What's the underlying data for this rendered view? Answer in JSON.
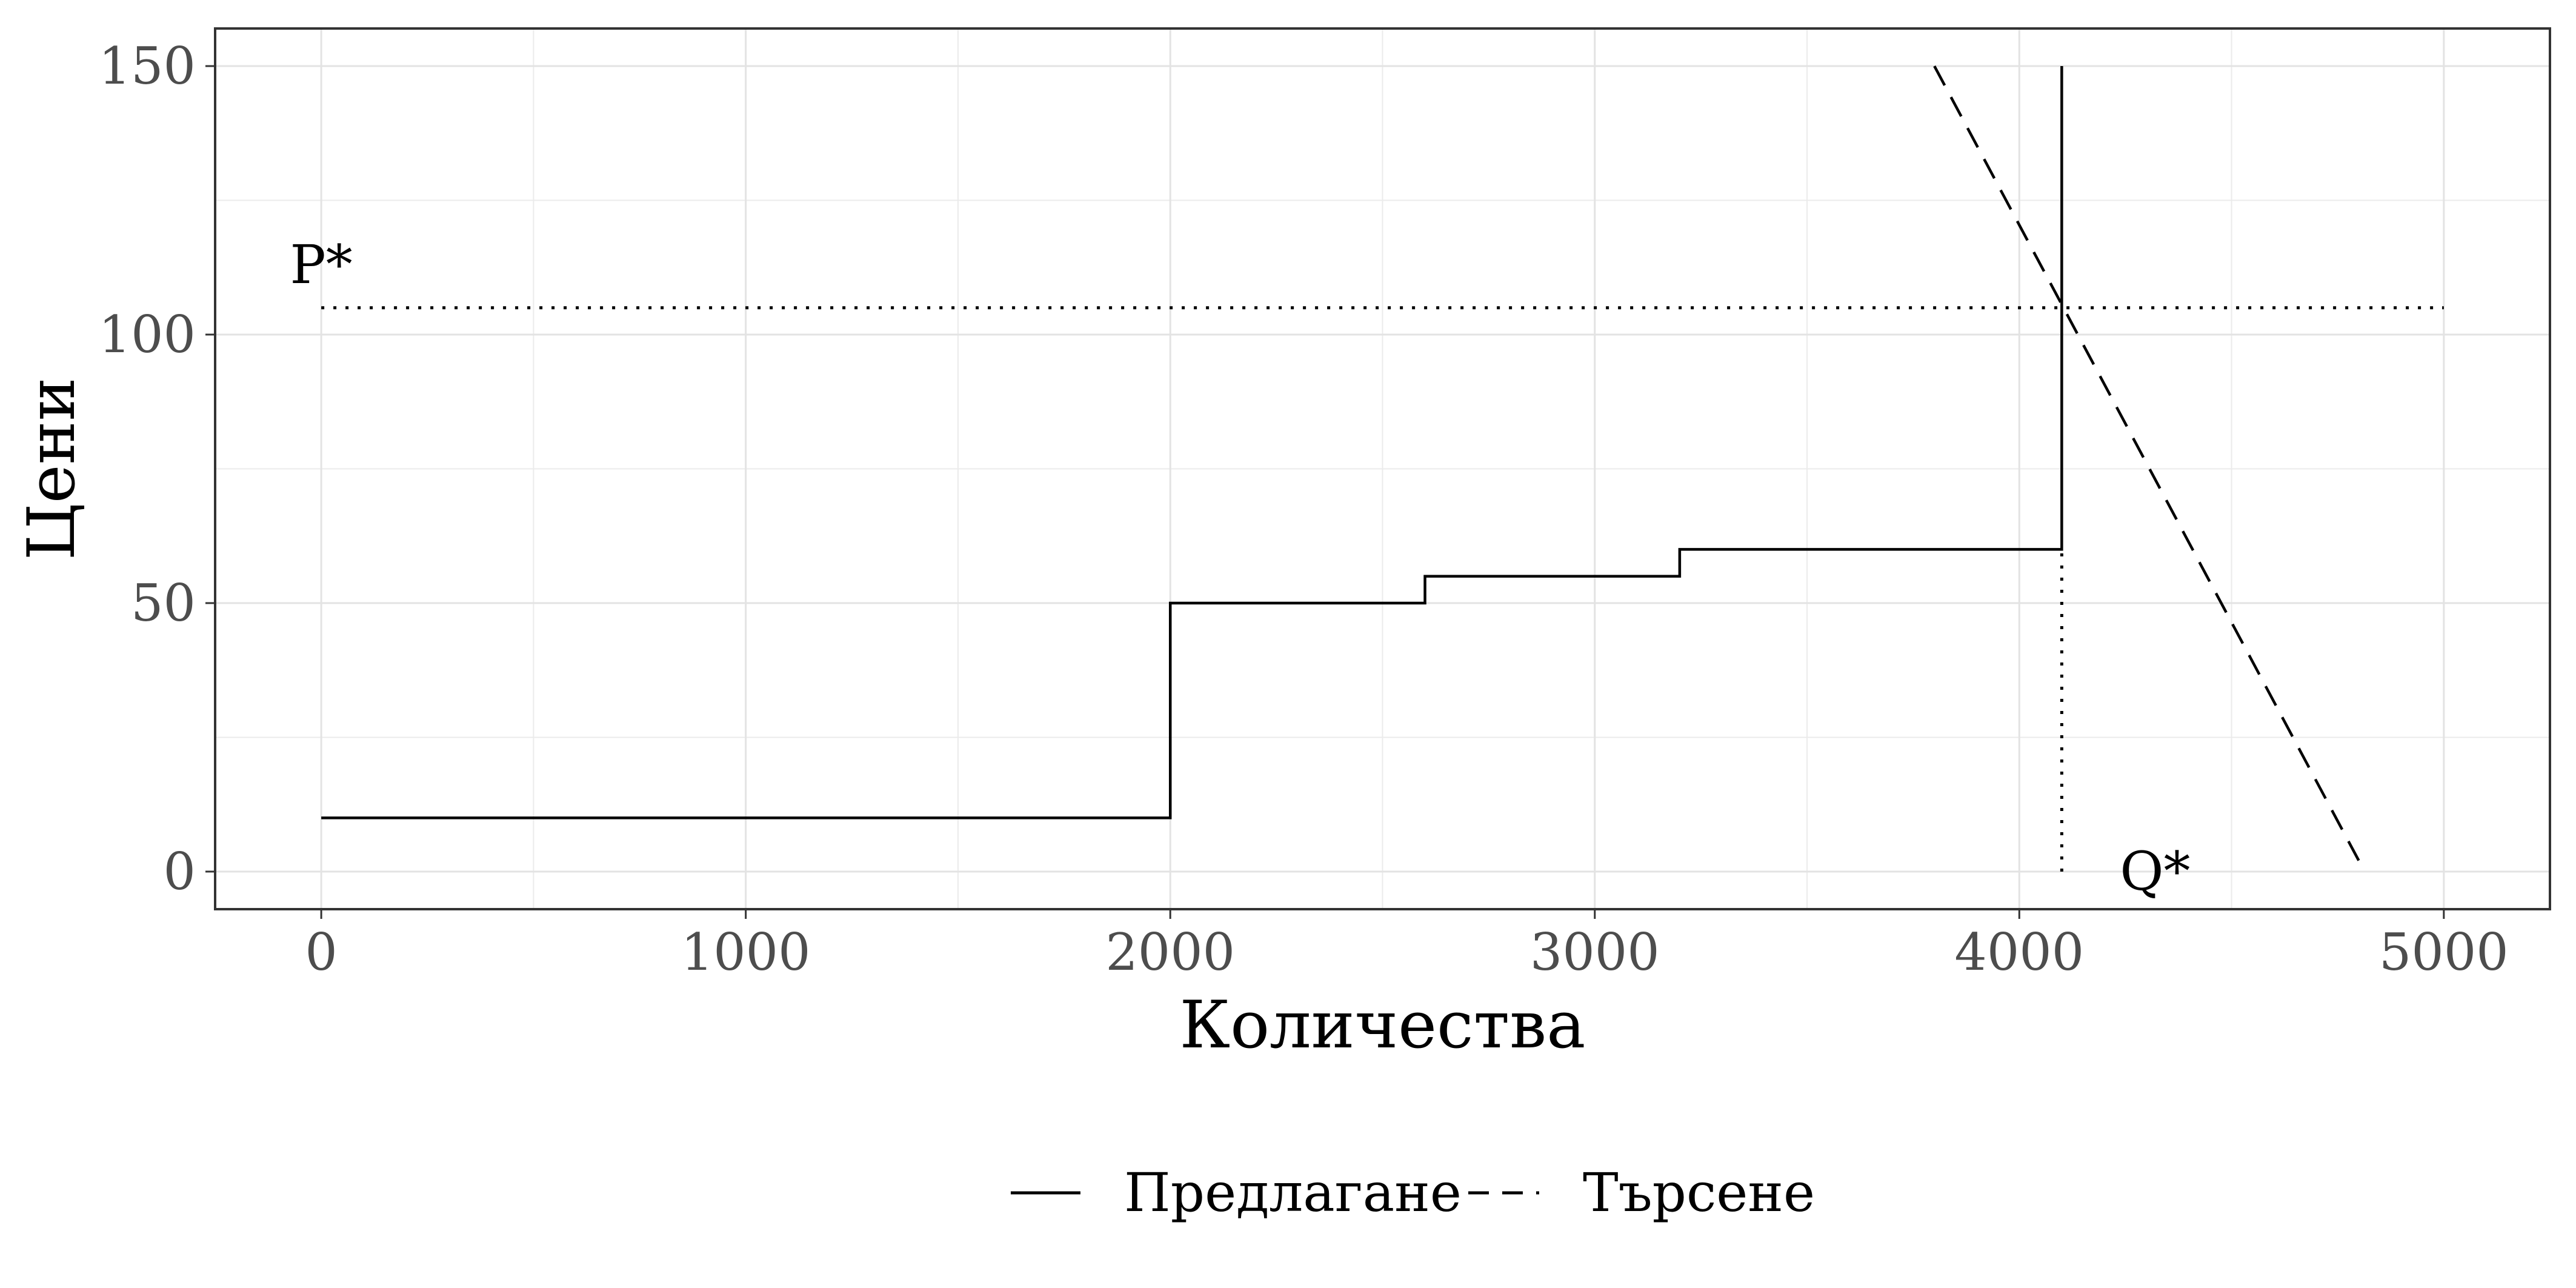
{
  "chart_data": {
    "type": "line",
    "title": "",
    "xlabel": "Количества",
    "ylabel": "Цени",
    "xlim": [
      -250,
      5250
    ],
    "ylim": [
      -7,
      157
    ],
    "xticks": [
      0,
      1000,
      2000,
      3000,
      4000,
      5000
    ],
    "yticks": [
      0,
      50,
      100,
      150
    ],
    "xtick_labels": [
      "0",
      "1000",
      "2000",
      "3000",
      "4000",
      "5000"
    ],
    "ytick_labels": [
      "0",
      "50",
      "100",
      "150"
    ],
    "grid": true,
    "legend_position": "bottom",
    "series": [
      {
        "name": "Предлагане",
        "style": "solid",
        "color": "#000000",
        "x": [
          0,
          2000,
          2000,
          2600,
          2600,
          3200,
          3200,
          4100,
          4100
        ],
        "y": [
          10,
          10,
          50,
          50,
          55,
          55,
          60,
          60,
          150
        ]
      },
      {
        "name": "Търсене",
        "style": "dashed",
        "color": "#000000",
        "x": [
          3800,
          4800
        ],
        "y": [
          150,
          2
        ]
      }
    ],
    "reference_lines": [
      {
        "style": "dotted",
        "x": [
          0,
          5000
        ],
        "y": [
          105,
          105
        ]
      },
      {
        "style": "dotted",
        "x": [
          4100,
          4100
        ],
        "y": [
          0,
          60
        ]
      }
    ],
    "annotations": [
      {
        "text": "P*",
        "x": 0,
        "y": 113
      },
      {
        "text": "Q*",
        "x": 4320,
        "y": 0
      }
    ]
  }
}
